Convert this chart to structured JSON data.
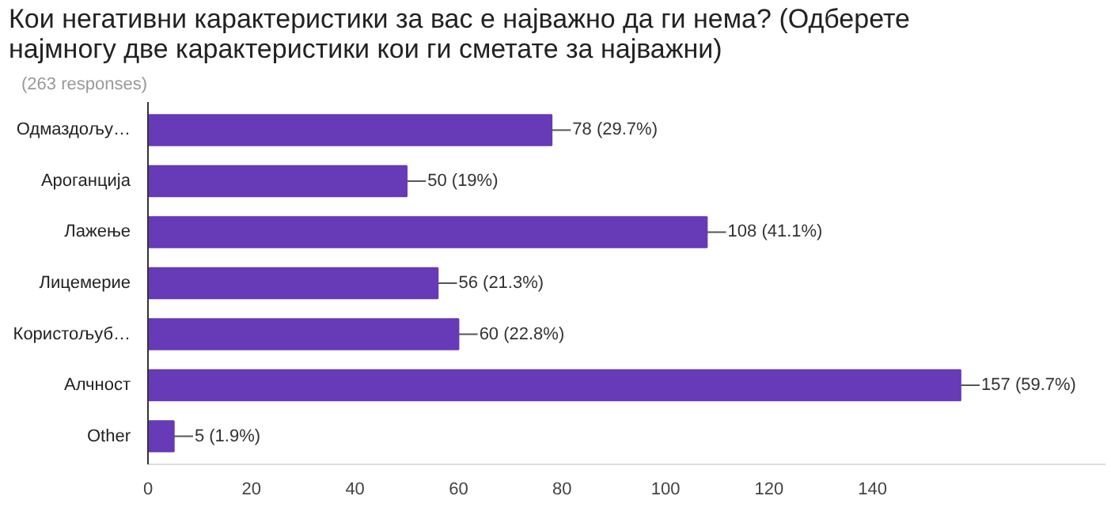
{
  "chart_data": {
    "type": "bar",
    "orientation": "horizontal",
    "title": "Кои негативни карактеристики за вас е најважно да ги нема? (Одберете најмногу две карактеристики кои ги сметате за најважни)",
    "subtitle": "(263 responses)",
    "categories": [
      "Одмаздољу…",
      "Ароганција",
      "Лажење",
      "Лицемерие",
      "Користољуб…",
      "Алчност",
      "Other"
    ],
    "values": [
      78,
      50,
      108,
      56,
      60,
      157,
      5
    ],
    "value_labels": [
      "78 (29.7%)",
      "50 (19%)",
      "108 (41.1%)",
      "56 (21.3%)",
      "60 (22.8%)",
      "157 (59.7%)",
      "5 (1.9%)"
    ],
    "color": "#673ab7",
    "xlim": [
      0,
      185
    ],
    "xticks": [
      0,
      20,
      40,
      60,
      80,
      100,
      120,
      140
    ],
    "grid": false
  }
}
